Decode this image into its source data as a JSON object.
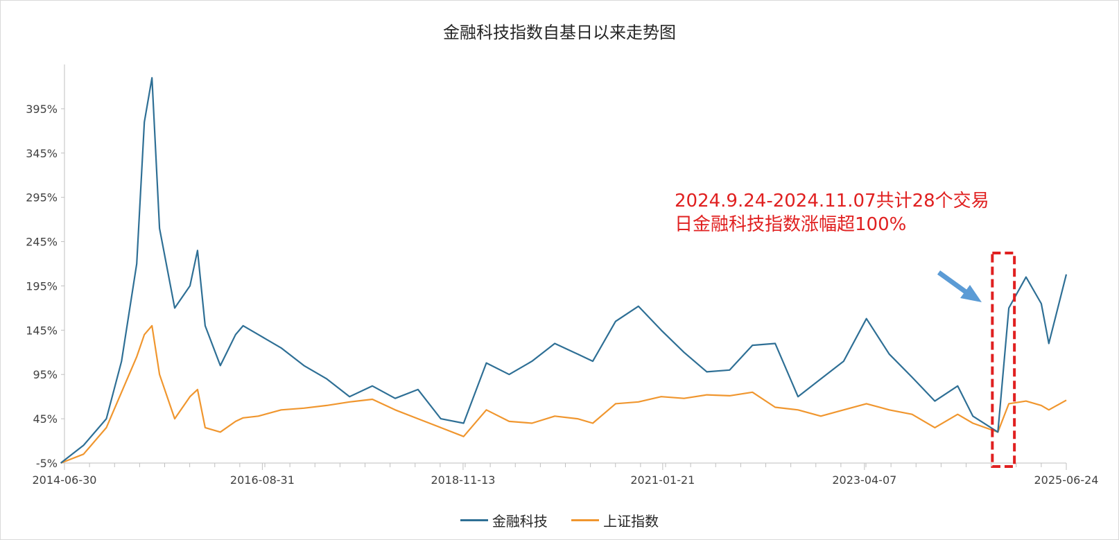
{
  "chart_data": {
    "type": "line",
    "title": "金融科技指数自基日以来走势图",
    "xlabel": "",
    "ylabel": "",
    "x_tick_labels": [
      "2014-06-30",
      "2016-08-31",
      "2018-11-13",
      "2021-01-21",
      "2023-04-07",
      "2025-06-24"
    ],
    "y_tick_labels": [
      "-5%",
      "45%",
      "95%",
      "145%",
      "195%",
      "245%",
      "295%",
      "345%",
      "395%"
    ],
    "ylim": [
      -5,
      445
    ],
    "grid": false,
    "legend_position": "bottom",
    "x": [
      "2014-06",
      "2014-09",
      "2014-12",
      "2015-02",
      "2015-04",
      "2015-05",
      "2015-06",
      "2015-07",
      "2015-09",
      "2015-11",
      "2015-12",
      "2016-01",
      "2016-03",
      "2016-05",
      "2016-06",
      "2016-08",
      "2016-11",
      "2017-02",
      "2017-05",
      "2017-08",
      "2017-11",
      "2018-02",
      "2018-05",
      "2018-08",
      "2018-11",
      "2019-02",
      "2019-05",
      "2019-08",
      "2019-11",
      "2020-02",
      "2020-04",
      "2020-07",
      "2020-10",
      "2021-01",
      "2021-04",
      "2021-07",
      "2021-10",
      "2022-01",
      "2022-04",
      "2022-07",
      "2022-10",
      "2023-01",
      "2023-04",
      "2023-07",
      "2023-10",
      "2024-01",
      "2024-04",
      "2024-06",
      "2024-09-24",
      "2024-11-07",
      "2025-01",
      "2025-03",
      "2025-04",
      "2025-06-24"
    ],
    "series": [
      {
        "name": "金融科技",
        "color": "#2e6f95",
        "values": [
          -5,
          15,
          45,
          110,
          220,
          380,
          430,
          260,
          170,
          195,
          235,
          150,
          105,
          140,
          150,
          140,
          125,
          105,
          90,
          70,
          82,
          68,
          78,
          45,
          40,
          108,
          95,
          110,
          130,
          118,
          110,
          155,
          172,
          145,
          120,
          98,
          100,
          128,
          130,
          70,
          90,
          110,
          158,
          118,
          92,
          65,
          82,
          48,
          30,
          170,
          205,
          175,
          130,
          208
        ]
      },
      {
        "name": "上证指数",
        "color": "#f0962e",
        "values": [
          -5,
          5,
          35,
          75,
          115,
          140,
          150,
          95,
          45,
          70,
          78,
          35,
          30,
          42,
          46,
          48,
          55,
          57,
          60,
          64,
          67,
          55,
          45,
          35,
          25,
          55,
          42,
          40,
          48,
          45,
          40,
          62,
          64,
          70,
          68,
          72,
          71,
          75,
          58,
          55,
          48,
          55,
          62,
          55,
          50,
          35,
          50,
          40,
          30,
          62,
          65,
          60,
          55,
          66
        ]
      }
    ],
    "annotations": [
      {
        "text": [
          "2024.9.24-2024.11.07共计28个交易",
          "日金融科技指数涨幅超100%"
        ],
        "color": "#e02020"
      }
    ]
  }
}
